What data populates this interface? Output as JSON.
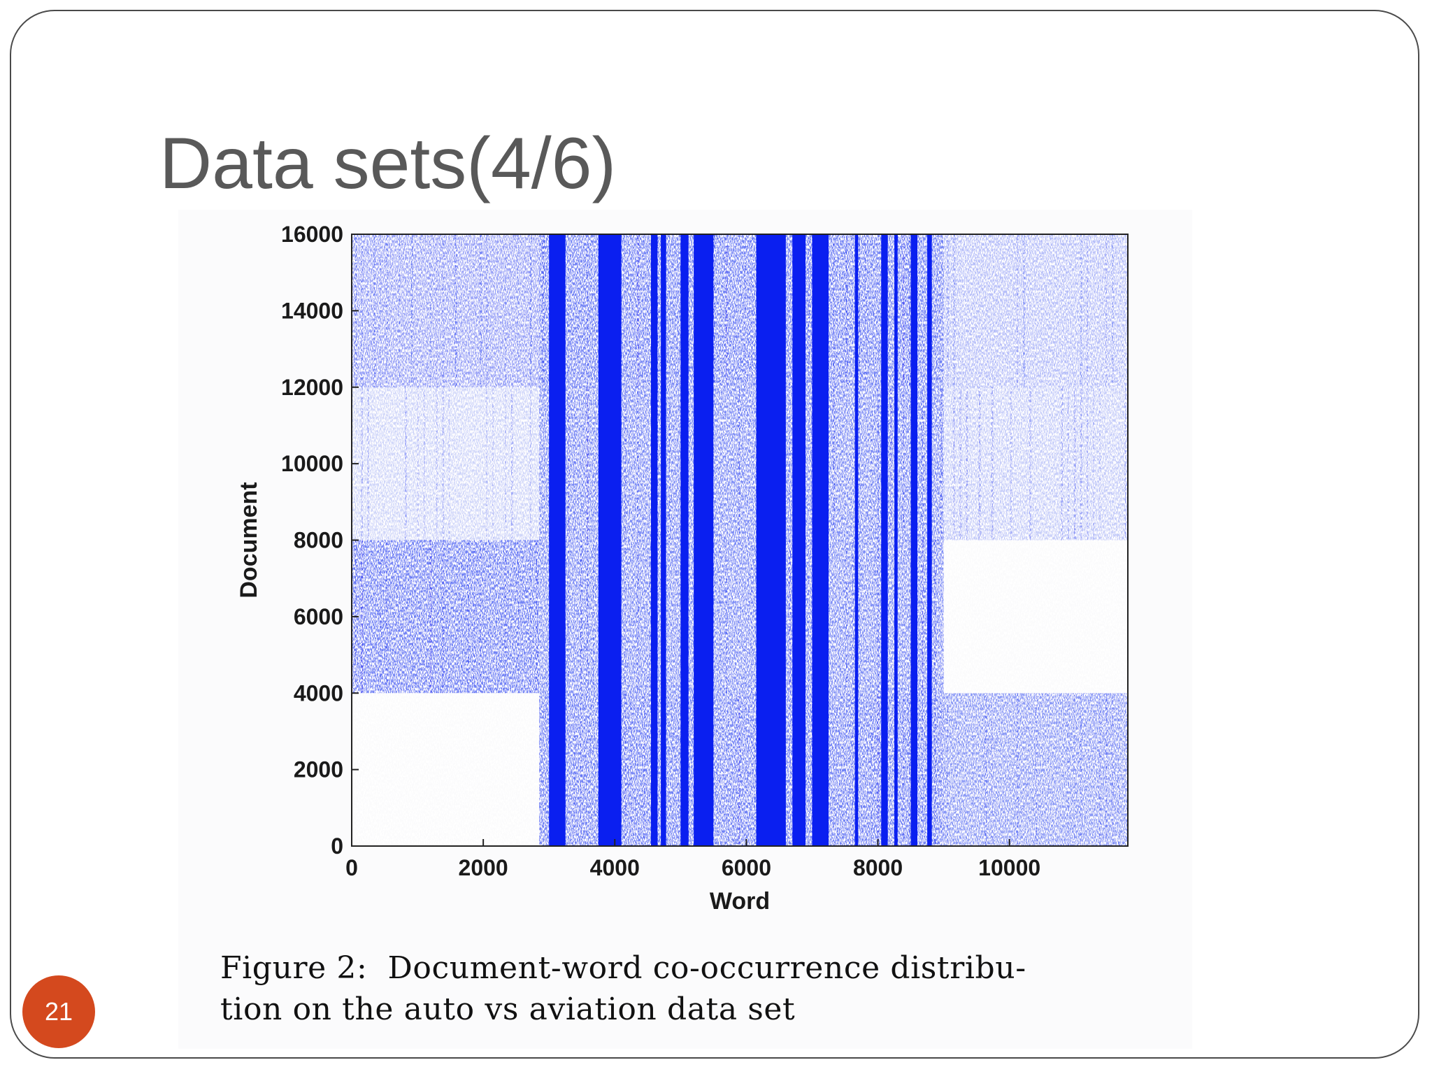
{
  "slide": {
    "title": "Data sets(4/6)",
    "number": "21",
    "caption_line1": "Figure 2:  Document-word co-occurrence distribu-",
    "caption_line2": "tion on the auto vs aviation data set"
  },
  "colors": {
    "accent": "#d4491e",
    "dots": "#0a1ff0",
    "title": "#595959"
  },
  "chart_data": {
    "type": "heatmap",
    "title": "",
    "xlabel": "Word",
    "ylabel": "Document",
    "xlim": [
      0,
      11800
    ],
    "ylim": [
      0,
      16000
    ],
    "x_ticks": [
      0,
      2000,
      4000,
      6000,
      8000,
      10000
    ],
    "y_ticks": [
      0,
      2000,
      4000,
      6000,
      8000,
      10000,
      12000,
      14000,
      16000
    ],
    "grid": false,
    "legend": "none",
    "x_blocks": [
      {
        "x0": 0,
        "x1": 2850
      },
      {
        "x0": 2850,
        "x1": 9000
      },
      {
        "x0": 9000,
        "x1": 11800
      }
    ],
    "y_blocks": [
      {
        "y0": 0,
        "y1": 4000
      },
      {
        "y0": 4000,
        "y1": 8000
      },
      {
        "y0": 8000,
        "y1": 12000
      },
      {
        "y0": 12000,
        "y1": 16000
      }
    ],
    "density": [
      [
        0.0,
        0.55,
        0.45
      ],
      [
        0.55,
        0.5,
        0.0
      ],
      [
        0.18,
        0.5,
        0.22
      ],
      [
        0.4,
        0.55,
        0.28
      ]
    ],
    "dense_word_bands": [
      {
        "x0": 3000,
        "x1": 3250
      },
      {
        "x0": 3750,
        "x1": 4100
      },
      {
        "x0": 4550,
        "x1": 4650
      },
      {
        "x0": 4700,
        "x1": 4780
      },
      {
        "x0": 5000,
        "x1": 5120
      },
      {
        "x0": 5200,
        "x1": 5500
      },
      {
        "x0": 6150,
        "x1": 6600
      },
      {
        "x0": 6700,
        "x1": 6900
      },
      {
        "x0": 7000,
        "x1": 7250
      },
      {
        "x0": 7650,
        "x1": 7700
      },
      {
        "x0": 8050,
        "x1": 8150
      },
      {
        "x0": 8250,
        "x1": 8300
      },
      {
        "x0": 8500,
        "x1": 8600
      },
      {
        "x0": 8750,
        "x1": 8820
      }
    ]
  }
}
